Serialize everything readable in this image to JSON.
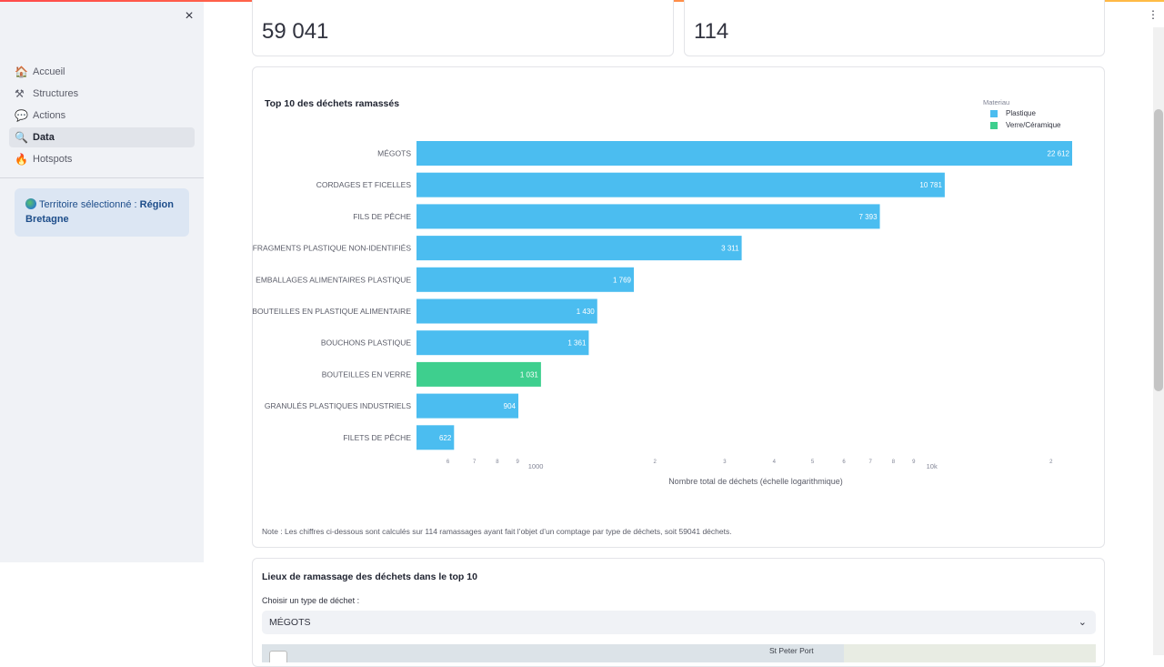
{
  "sidebar": {
    "close_label": "×",
    "items": [
      {
        "label": "Accueil",
        "icon": "house-icon"
      },
      {
        "label": "Structures",
        "icon": "hammer-icon"
      },
      {
        "label": "Actions",
        "icon": "speech-bubble-icon"
      },
      {
        "label": "Data",
        "icon": "magnifier-icon"
      },
      {
        "label": "Hotspots",
        "icon": "fire-icon"
      }
    ],
    "active_item": "Data",
    "territory": {
      "prefix": "Territoire sélectionné :",
      "value": "Région Bretagne"
    }
  },
  "metrics": {
    "left_value": "59 041",
    "right_value": "114"
  },
  "chart_data": {
    "type": "bar",
    "orientation": "horizontal",
    "title": "Top 10 des déchets ramassés",
    "xlabel": "Nombre total de déchets (échelle logarithmique)",
    "x_scale": "log",
    "xlim": [
      500,
      25000
    ],
    "categories": [
      "MÉGOTS",
      "CORDAGES ET FICELLES",
      "FILS DE PÊCHE",
      "FRAGMENTS PLASTIQUE NON-IDENTIFIÉS",
      "EMBALLAGES ALIMENTAIRES PLASTIQUE",
      "BOUTEILLES EN PLASTIQUE ALIMENTAIRE",
      "BOUCHONS PLASTIQUE",
      "BOUTEILLES EN VERRE",
      "GRANULÉS PLASTIQUES INDUSTRIELS",
      "FILETS DE PÊCHE"
    ],
    "values": [
      22612,
      10781,
      7393,
      3311,
      1769,
      1430,
      1361,
      1031,
      904,
      622
    ],
    "value_labels": [
      "22 612",
      "10 781",
      "7 393",
      "3 311",
      "1 769",
      "1 430",
      "1 361",
      "1 031",
      "904",
      "622"
    ],
    "material": [
      "Plastique",
      "Plastique",
      "Plastique",
      "Plastique",
      "Plastique",
      "Plastique",
      "Plastique",
      "Verre/Céramique",
      "Plastique",
      "Plastique"
    ],
    "legend": {
      "title": "Materiau",
      "placement": "top-right",
      "entries": [
        {
          "name": "Plastique",
          "color": "#4bbdf0"
        },
        {
          "name": "Verre/Céramique",
          "color": "#3ecf8e"
        }
      ]
    },
    "ticks": [
      {
        "value": 600,
        "label": "6",
        "minor": true
      },
      {
        "value": 700,
        "label": "7",
        "minor": true
      },
      {
        "value": 800,
        "label": "8",
        "minor": true
      },
      {
        "value": 900,
        "label": "9",
        "minor": true
      },
      {
        "value": 1000,
        "label": "1000",
        "minor": false
      },
      {
        "value": 2000,
        "label": "2",
        "minor": true
      },
      {
        "value": 3000,
        "label": "3",
        "minor": true
      },
      {
        "value": 4000,
        "label": "4",
        "minor": true
      },
      {
        "value": 5000,
        "label": "5",
        "minor": true
      },
      {
        "value": 6000,
        "label": "6",
        "minor": true
      },
      {
        "value": 7000,
        "label": "7",
        "minor": true
      },
      {
        "value": 8000,
        "label": "8",
        "minor": true
      },
      {
        "value": 9000,
        "label": "9",
        "minor": true
      },
      {
        "value": 10000,
        "label": "10k",
        "minor": false
      },
      {
        "value": 20000,
        "label": "2",
        "minor": true
      }
    ],
    "grid": false
  },
  "note": "Note : Les chiffres ci-dessous sont calculés sur 114 ramassages ayant fait l’objet d’un comptage par type de déchets, soit 59041 déchets.",
  "section2": {
    "title": "Lieux de ramassage des déchets dans le top 10",
    "select_label": "Choisir un type de déchet :",
    "select_value": "MÉGOTS",
    "map_place": "St Peter Port"
  }
}
